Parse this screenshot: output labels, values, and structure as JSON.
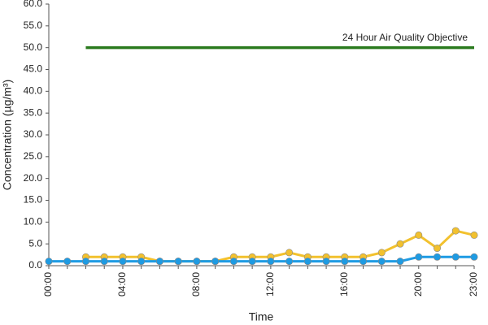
{
  "chart_data": {
    "type": "line",
    "xlabel": "Time",
    "ylabel": "Concentration (µg/m³)",
    "annotation": "24 Hour Air Quality Objective",
    "categories": [
      "00:00",
      null,
      null,
      null,
      "04:00",
      null,
      null,
      null,
      "08:00",
      null,
      null,
      null,
      "12:00",
      null,
      null,
      null,
      "16:00",
      null,
      null,
      null,
      "20:00",
      null,
      null,
      "23:00"
    ],
    "series": [
      {
        "color": "#2a7a1e",
        "markers": false,
        "values": [
          null,
          null,
          50,
          50,
          50,
          50,
          50,
          50,
          50,
          50,
          50,
          50,
          50,
          50,
          50,
          50,
          50,
          50,
          50,
          50,
          50,
          50,
          50,
          50
        ]
      },
      {
        "color": "#f2c12e",
        "markers": true,
        "values": [
          null,
          null,
          2,
          2,
          2,
          2,
          1,
          1,
          1,
          1,
          2,
          2,
          2,
          3,
          2,
          2,
          2,
          2,
          3,
          5,
          7,
          4,
          8,
          7
        ]
      },
      {
        "color": "#1e9be3",
        "markers": true,
        "values": [
          1,
          1,
          1,
          1,
          1,
          1,
          1,
          1,
          1,
          1,
          1,
          1,
          1,
          1,
          1,
          1,
          1,
          1,
          1,
          1,
          2,
          2,
          2,
          2
        ]
      }
    ],
    "ylim": [
      0,
      60
    ],
    "yticks": [
      {
        "value": 0,
        "label": "0.0"
      },
      {
        "value": 5,
        "label": "5.0"
      },
      {
        "value": 10,
        "label": "10.0"
      },
      {
        "value": 15,
        "label": "15.0"
      },
      {
        "value": 20,
        "label": "20.0"
      },
      {
        "value": 25,
        "label": "25.0"
      },
      {
        "value": 30,
        "label": "30.0"
      },
      {
        "value": 35,
        "label": "35.0"
      },
      {
        "value": 40,
        "label": "40.0"
      },
      {
        "value": 45,
        "label": "45.0"
      },
      {
        "value": 50,
        "label": "50.0"
      },
      {
        "value": 55,
        "label": "55.0"
      },
      {
        "value": 60,
        "label": "60.0"
      }
    ],
    "grid": false
  }
}
